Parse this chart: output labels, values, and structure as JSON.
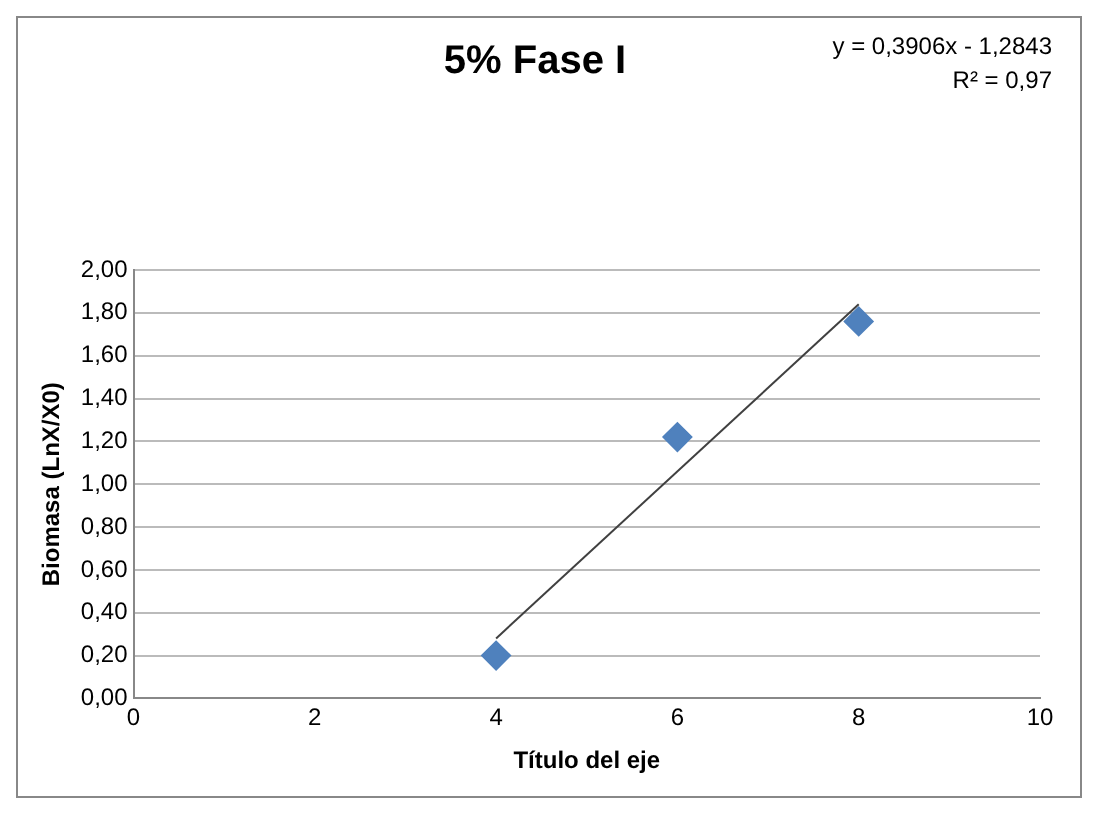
{
  "chart_data": {
    "type": "scatter",
    "title": "5% Fase I",
    "xlabel": "Título del eje",
    "ylabel": "Biomasa (LnX/X0)",
    "annotations": [
      "y = 0,3906x - 1,2843",
      "R² = 0,97"
    ],
    "series": [
      {
        "type": "scatter",
        "color": "#4f81bd",
        "x": [
          4,
          6,
          8
        ],
        "values": [
          0.2,
          1.22,
          1.76
        ],
        "marker": "diamond"
      },
      {
        "type": "line",
        "color": "#404040",
        "x": [
          4,
          8
        ],
        "values": [
          0.28,
          1.84
        ],
        "marker": "none"
      }
    ],
    "xlim": [
      0,
      10
    ],
    "xticks": [
      0,
      2,
      4,
      6,
      8,
      10
    ],
    "ylim": [
      0,
      2
    ],
    "yticks": [
      {
        "value": 0,
        "label": "0,00"
      },
      {
        "value": 0.2,
        "label": "0,20"
      },
      {
        "value": 0.4,
        "label": "0,40"
      },
      {
        "value": 0.6,
        "label": "0,60"
      },
      {
        "value": 0.8,
        "label": "0,80"
      },
      {
        "value": 1,
        "label": "1,00"
      },
      {
        "value": 1.2,
        "label": "1,20"
      },
      {
        "value": 1.4,
        "label": "1,40"
      },
      {
        "value": 1.6,
        "label": "1,60"
      },
      {
        "value": 1.8,
        "label": "1,80"
      },
      {
        "value": 2,
        "label": "2,00"
      }
    ],
    "grid": "y",
    "legend": false
  }
}
